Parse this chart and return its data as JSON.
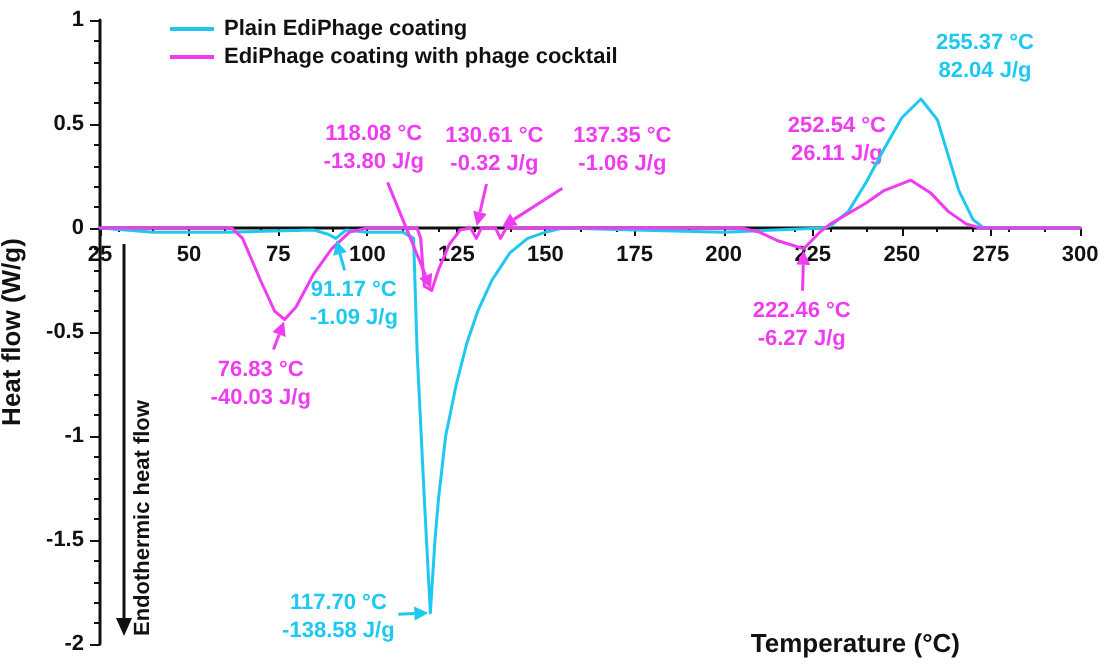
{
  "chart_data": {
    "type": "line",
    "xlabel": "Temperature (°C)",
    "ylabel": "Heat flow (W/g)",
    "xlim": [
      25,
      300
    ],
    "xticks": [
      25,
      50,
      75,
      100,
      125,
      150,
      175,
      200,
      225,
      250,
      275,
      300
    ],
    "ylim": [
      -2,
      1
    ],
    "yticks": [
      -2,
      -1.5,
      -1,
      -0.5,
      0,
      0.5,
      1
    ],
    "grid": false,
    "legend": "top left",
    "marker": "none",
    "line_style": "solid",
    "series": [
      {
        "name": "Plain EdiPhage coating",
        "color": "#1ec8f0",
        "x": [
          25,
          40,
          60,
          85,
          89,
          91.17,
          94,
          100,
          110,
          113,
          114,
          116,
          117.7,
          119,
          120,
          122,
          125,
          128,
          131,
          135,
          140,
          145,
          150,
          155,
          175,
          200,
          228,
          230,
          235,
          240,
          245,
          250,
          255.37,
          260,
          263,
          266,
          270,
          273,
          300
        ],
        "values": [
          0,
          -0.02,
          -0.02,
          -0.01,
          -0.03,
          -0.05,
          -0.01,
          -0.02,
          -0.02,
          -0.05,
          -0.6,
          -1.3,
          -1.85,
          -1.5,
          -1.3,
          -1.0,
          -0.75,
          -0.55,
          -0.4,
          -0.25,
          -0.12,
          -0.05,
          -0.02,
          0,
          -0.01,
          -0.02,
          0,
          0.01,
          0.08,
          0.22,
          0.38,
          0.53,
          0.62,
          0.52,
          0.35,
          0.18,
          0.04,
          0,
          0
        ]
      },
      {
        "name": "EdiPhage coating with phage cocktail",
        "color": "#f03cf0",
        "x": [
          25,
          62,
          65,
          70,
          74,
          76.83,
          80,
          85,
          90,
          95,
          100,
          114,
          115,
          116,
          118.08,
          120,
          123,
          126,
          129,
          130.61,
          132,
          136,
          137.35,
          139,
          205,
          210,
          215,
          222.46,
          227,
          230,
          240,
          245,
          252.54,
          258,
          263,
          268,
          272,
          300
        ],
        "values": [
          0,
          0,
          -0.05,
          -0.25,
          -0.4,
          -0.44,
          -0.38,
          -0.22,
          -0.1,
          -0.02,
          0,
          0,
          -0.05,
          -0.28,
          -0.3,
          -0.2,
          -0.08,
          -0.01,
          0,
          -0.05,
          0,
          0,
          -0.05,
          0,
          0,
          -0.02,
          -0.06,
          -0.1,
          -0.02,
          0.02,
          0.12,
          0.18,
          0.23,
          0.17,
          0.08,
          0.02,
          0,
          0
        ]
      }
    ],
    "annotations": [
      {
        "text": "76.83 °C\n-40.03 J/g",
        "x": 76.83,
        "y": -0.44
      },
      {
        "text": "91.17 °C\n-1.09 J/g",
        "x": 91.17,
        "y": -0.05
      },
      {
        "text": "117.70 °C\n-138.58 J/g",
        "x": 117.7,
        "y": -1.85
      },
      {
        "text": "118.08 °C\n-13.80 J/g",
        "x": 118.08,
        "y": -0.3
      },
      {
        "text": "130.61 °C\n-0.32 J/g",
        "x": 130.61,
        "y": 0
      },
      {
        "text": "137.35 °C\n-1.06 J/g",
        "x": 137.35,
        "y": 0
      },
      {
        "text": "222.46 °C\n-6.27 J/g",
        "x": 222.46,
        "y": -0.1
      },
      {
        "text": "252.54 °C\n26.11 J/g",
        "x": 252.54,
        "y": 0.23
      },
      {
        "text": "255.37 °C\n82.04 J/g",
        "x": 255.37,
        "y": 0.62
      },
      "Endothermic heat flow"
    ]
  }
}
